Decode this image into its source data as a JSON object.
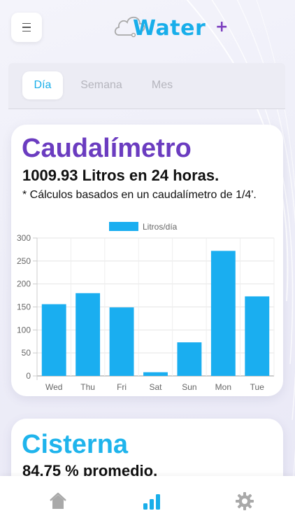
{
  "header": {
    "logo_text": "Water",
    "logo_plus": "+",
    "menu_icon": "hamburger-icon",
    "cloud_icon": "cloud-icon"
  },
  "tabs": [
    {
      "label": "Día",
      "active": true
    },
    {
      "label": "Semana",
      "active": false
    },
    {
      "label": "Mes",
      "active": false
    }
  ],
  "flow_card": {
    "title": "Caudalímetro",
    "summary": "1009.93 Litros en 24 horas.",
    "note": "* Cálculos basados en un caudalímetro de 1/4'."
  },
  "chart_data": {
    "type": "bar",
    "categories": [
      "Wed",
      "Thu",
      "Fri",
      "Sat",
      "Sun",
      "Mon",
      "Tue"
    ],
    "series": [
      {
        "name": "Litros/día",
        "values": [
          156,
          180,
          149,
          8,
          73,
          272,
          173
        ]
      }
    ],
    "title": "",
    "xlabel": "",
    "ylabel": "",
    "ylim": [
      0,
      300
    ],
    "yticks": [
      0,
      50,
      100,
      150,
      200,
      250,
      300
    ],
    "grid": true,
    "legend": "top",
    "bar_color": "#1aaef0"
  },
  "tank_card": {
    "title": "Cisterna",
    "summary": "84.75 % promedio."
  },
  "bottom_nav": [
    {
      "icon": "home-icon",
      "active": false
    },
    {
      "icon": "chart-icon",
      "active": true
    },
    {
      "icon": "gear-icon",
      "active": false
    }
  ],
  "colors": {
    "accent_blue": "#19aee9",
    "accent_purple": "#6b3cc0",
    "inactive_gray": "#a9a9a9"
  }
}
